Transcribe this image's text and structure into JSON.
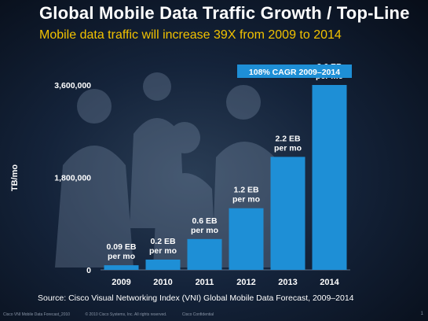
{
  "slide": {
    "title": "Global Mobile Data Traffic Growth / Top-Line",
    "subtitle": "Mobile data traffic will increase 39X from 2009 to 2014",
    "source": "Source: Cisco Visual Networking Index (VNI) Global Mobile Data Forecast, 2009–2014",
    "footer": {
      "left": "Cisco VNI Mobile Data Forecast_2010",
      "middle": "© 2010 Cisco Systems, Inc. All rights reserved.",
      "right": "Cisco Confidential",
      "page": "1"
    },
    "colors": {
      "bar": "#1e8fd6",
      "subtitle": "#f2c200",
      "cagr_box": "#1e8fd6"
    }
  },
  "chart_data": {
    "type": "bar",
    "categories": [
      "2009",
      "2010",
      "2011",
      "2012",
      "2013",
      "2014"
    ],
    "values": [
      90000,
      200000,
      600000,
      1200000,
      2200000,
      3600000
    ],
    "data_labels": [
      [
        "0.09 EB",
        "per mo"
      ],
      [
        "0.2 EB",
        "per mo"
      ],
      [
        "0.6 EB",
        "per mo"
      ],
      [
        "1.2 EB",
        "per mo"
      ],
      [
        "2.2 EB",
        "per mo"
      ],
      [
        "3.6 EB",
        "per mo"
      ]
    ],
    "ylabel": "TB/mo",
    "yticks": [
      "0",
      "1,800,000",
      "3,600,000"
    ],
    "ytick_values": [
      0,
      1800000,
      3600000
    ],
    "ylim": [
      0,
      3600000
    ],
    "annotation": "108% CAGR 2009–2014",
    "grid": false
  }
}
